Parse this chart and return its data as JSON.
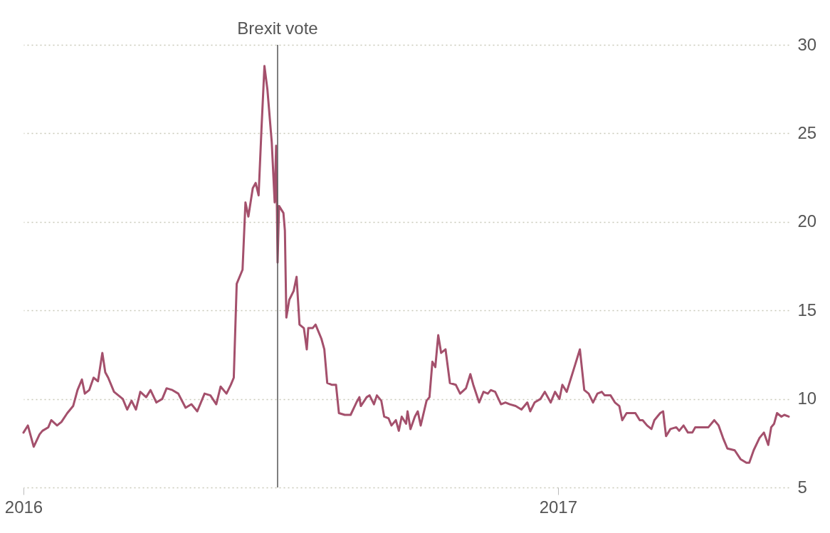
{
  "chart_data": {
    "type": "line",
    "x": [
      "2016-01-01",
      "2016-01-04",
      "2016-01-08",
      "2016-01-12",
      "2016-01-14",
      "2016-01-18",
      "2016-01-20",
      "2016-01-24",
      "2016-01-27",
      "2016-01-31",
      "2016-02-04",
      "2016-02-07",
      "2016-02-10",
      "2016-02-12",
      "2016-02-15",
      "2016-02-18",
      "2016-02-21",
      "2016-02-24",
      "2016-02-26",
      "2016-02-28",
      "2016-03-03",
      "2016-03-06",
      "2016-03-09",
      "2016-03-12",
      "2016-03-15",
      "2016-03-18",
      "2016-03-21",
      "2016-03-25",
      "2016-03-28",
      "2016-04-01",
      "2016-04-05",
      "2016-04-08",
      "2016-04-12",
      "2016-04-16",
      "2016-04-21",
      "2016-04-25",
      "2016-04-29",
      "2016-05-04",
      "2016-05-08",
      "2016-05-12",
      "2016-05-15",
      "2016-05-19",
      "2016-05-22",
      "2016-05-24",
      "2016-05-26",
      "2016-05-30",
      "2016-06-01",
      "2016-06-03",
      "2016-06-06",
      "2016-06-08",
      "2016-06-10",
      "2016-06-12",
      "2016-06-14",
      "2016-06-16",
      "2016-06-19",
      "2016-06-21",
      "2016-06-22",
      "2016-06-23",
      "2016-06-24",
      "2016-06-27",
      "2016-06-28",
      "2016-06-29",
      "2016-07-01",
      "2016-07-04",
      "2016-07-06",
      "2016-07-08",
      "2016-07-11",
      "2016-07-13",
      "2016-07-14",
      "2016-07-17",
      "2016-07-19",
      "2016-07-23",
      "2016-07-25",
      "2016-07-27",
      "2016-07-30",
      "2016-08-02",
      "2016-08-04",
      "2016-08-08",
      "2016-08-12",
      "2016-08-16",
      "2016-08-18",
      "2016-08-19",
      "2016-08-23",
      "2016-08-25",
      "2016-08-28",
      "2016-08-30",
      "2016-09-02",
      "2016-09-04",
      "2016-09-07",
      "2016-09-09",
      "2016-09-12",
      "2016-09-14",
      "2016-09-16",
      "2016-09-19",
      "2016-09-20",
      "2016-09-22",
      "2016-09-25",
      "2016-09-27",
      "2016-09-29",
      "2016-10-03",
      "2016-10-05",
      "2016-10-07",
      "2016-10-09",
      "2016-10-11",
      "2016-10-13",
      "2016-10-16",
      "2016-10-19",
      "2016-10-23",
      "2016-10-26",
      "2016-10-30",
      "2016-11-02",
      "2016-11-04",
      "2016-11-08",
      "2016-11-11",
      "2016-11-14",
      "2016-11-16",
      "2016-11-19",
      "2016-11-23",
      "2016-11-26",
      "2016-11-29",
      "2016-12-03",
      "2016-12-07",
      "2016-12-11",
      "2016-12-13",
      "2016-12-16",
      "2016-12-20",
      "2016-12-23",
      "2016-12-27",
      "2016-12-30",
      "2017-01-02",
      "2017-01-04",
      "2017-01-07",
      "2017-01-10",
      "2017-01-13",
      "2017-01-16",
      "2017-01-19",
      "2017-01-22",
      "2017-01-25",
      "2017-01-28",
      "2017-01-31",
      "2017-02-02",
      "2017-02-06",
      "2017-02-09",
      "2017-02-12",
      "2017-02-14",
      "2017-02-17",
      "2017-02-23",
      "2017-02-26",
      "2017-02-28",
      "2017-03-03",
      "2017-03-06",
      "2017-03-08",
      "2017-03-12",
      "2017-03-14",
      "2017-03-16",
      "2017-03-19",
      "2017-03-23",
      "2017-03-25",
      "2017-03-28",
      "2017-03-31",
      "2017-04-03",
      "2017-04-05",
      "2017-04-09",
      "2017-04-14",
      "2017-04-18",
      "2017-04-21",
      "2017-04-24",
      "2017-04-27",
      "2017-05-02",
      "2017-05-06",
      "2017-05-10",
      "2017-05-12",
      "2017-05-15",
      "2017-05-19",
      "2017-05-22",
      "2017-05-25",
      "2017-05-27",
      "2017-05-29",
      "2017-05-31",
      "2017-06-03",
      "2017-06-05",
      "2017-06-08"
    ],
    "series": [
      {
        "color": "#a4506c",
        "values": [
          8.1,
          8.5,
          7.3,
          8.0,
          8.2,
          8.4,
          8.8,
          8.5,
          8.7,
          9.2,
          9.6,
          10.5,
          11.1,
          10.3,
          10.5,
          11.2,
          11.0,
          12.6,
          11.5,
          11.2,
          10.4,
          10.2,
          10.0,
          9.4,
          9.9,
          9.4,
          10.4,
          10.1,
          10.5,
          9.8,
          10.0,
          10.6,
          10.5,
          10.3,
          9.5,
          9.7,
          9.3,
          10.3,
          10.2,
          9.7,
          10.7,
          10.3,
          10.8,
          11.2,
          16.5,
          17.3,
          21.1,
          20.3,
          21.9,
          22.2,
          21.5,
          25.3,
          28.8,
          27.5,
          24.5,
          21.1,
          24.3,
          17.7,
          20.9,
          20.5,
          19.5,
          14.6,
          15.6,
          16.1,
          16.9,
          14.2,
          14.0,
          12.8,
          14.0,
          14.0,
          14.2,
          13.4,
          12.8,
          10.9,
          10.8,
          10.8,
          9.2,
          9.1,
          9.1,
          9.8,
          10.1,
          9.6,
          10.1,
          10.2,
          9.7,
          10.2,
          9.9,
          9.0,
          8.9,
          8.5,
          8.8,
          8.2,
          9.0,
          8.6,
          9.3,
          8.3,
          9.0,
          9.3,
          8.5,
          9.9,
          10.1,
          12.1,
          11.8,
          13.6,
          12.6,
          12.8,
          10.9,
          10.8,
          10.3,
          10.6,
          11.4,
          10.8,
          9.8,
          10.4,
          10.3,
          10.5,
          10.4,
          9.7,
          9.8,
          9.7,
          9.6,
          9.4,
          9.8,
          9.3,
          9.8,
          10.0,
          10.4,
          9.8,
          10.4,
          10.0,
          10.8,
          10.4,
          11.2,
          12.0,
          12.8,
          10.5,
          10.3,
          9.8,
          10.3,
          10.4,
          10.2,
          10.2,
          9.8,
          9.6,
          8.8,
          9.2,
          9.2,
          8.8,
          8.8,
          8.5,
          8.3,
          8.8,
          9.2,
          9.3,
          7.9,
          8.3,
          8.4,
          8.2,
          8.5,
          8.1,
          8.1,
          8.4,
          8.4,
          8.4,
          8.8,
          8.5,
          7.8,
          7.2,
          7.1,
          6.6,
          6.4,
          6.4,
          7.1,
          7.8,
          8.1,
          7.4,
          8.4,
          8.6,
          9.2,
          9.0,
          9.1,
          9.0
        ]
      }
    ],
    "xlim": [
      "2016-01-01",
      "2017-06-08"
    ],
    "xticks": [
      {
        "value": "2016-01-01",
        "label": "2016"
      },
      {
        "value": "2017-01-01",
        "label": "2017"
      }
    ],
    "ylim": [
      5,
      30
    ],
    "yticks": [
      5,
      10,
      15,
      20,
      25,
      30
    ],
    "grid": "y",
    "ref_lines": [
      {
        "axis": "x",
        "value": "2016-06-23",
        "label": "Brexit vote",
        "color": "#555555"
      }
    ]
  }
}
